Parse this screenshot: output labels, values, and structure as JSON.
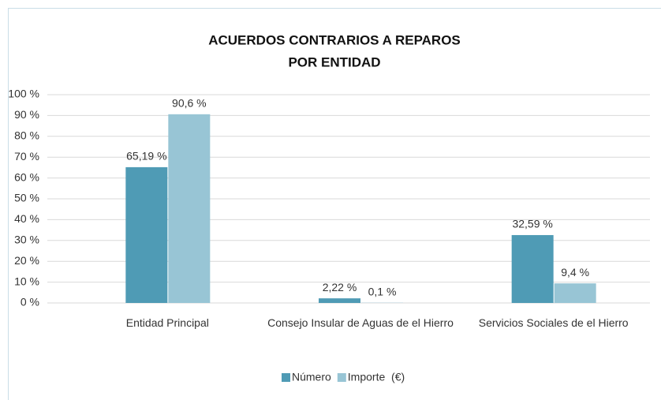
{
  "chart_data": {
    "type": "bar",
    "title": [
      "ACUERDOS CONTRARIOS A REPAROS",
      "POR ENTIDAD"
    ],
    "categories": [
      "Entidad Principal",
      "Consejo Insular de Aguas de el Hierro",
      "Servicios Sociales de el Hierro"
    ],
    "series": [
      {
        "name": "Número",
        "color": "#4f9bb5",
        "values": [
          65.19,
          2.22,
          32.59
        ],
        "value_labels": [
          "65,19 %",
          "2,22 %",
          "32,59 %"
        ]
      },
      {
        "name": "Importe  (€)",
        "color": "#98c5d5",
        "values": [
          90.6,
          0.1,
          9.4
        ],
        "value_labels": [
          "90,6 %",
          "0,1 %",
          "9,4 %"
        ]
      }
    ],
    "ylim": [
      0,
      100
    ],
    "yticks": [
      {
        "value": 0,
        "label": "0 %"
      },
      {
        "value": 10,
        "label": "10 %"
      },
      {
        "value": 20,
        "label": "20 %"
      },
      {
        "value": 30,
        "label": "30 %"
      },
      {
        "value": 40,
        "label": "40 %"
      },
      {
        "value": 50,
        "label": "50 %"
      },
      {
        "value": 60,
        "label": "60 %"
      },
      {
        "value": 70,
        "label": "70 %"
      },
      {
        "value": 80,
        "label": "80 %"
      },
      {
        "value": 90,
        "label": "90 %"
      },
      {
        "value": 100,
        "label": "100 %"
      }
    ],
    "grid": true,
    "legend": "bottom"
  }
}
